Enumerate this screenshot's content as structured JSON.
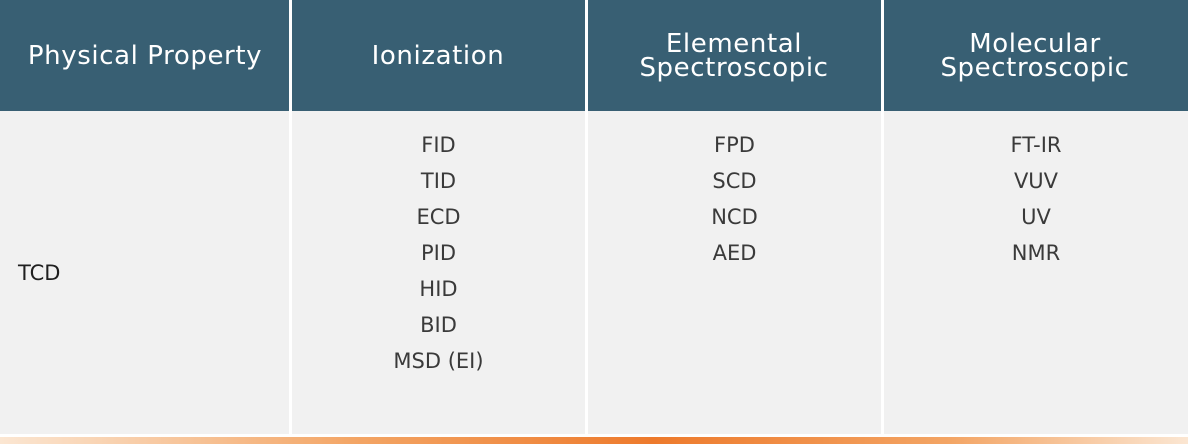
{
  "table": {
    "headers": [
      {
        "lines": [
          "Physical Property"
        ]
      },
      {
        "lines": [
          "Ionization"
        ]
      },
      {
        "lines": [
          "Elemental",
          "Spectroscopic"
        ]
      },
      {
        "lines": [
          "Molecular",
          "Spectroscopic"
        ]
      }
    ],
    "physical_property": [
      "TCD"
    ],
    "ionization": [
      "FID",
      "TID",
      "ECD",
      "PID",
      "HID",
      "BID",
      "MSD (EI)"
    ],
    "elemental_spectroscopic": [
      "FPD",
      "SCD",
      "NCD",
      "AED"
    ],
    "molecular_spectroscopic": [
      "FT-IR",
      "VUV",
      "UV",
      "NMR"
    ]
  },
  "colors": {
    "header_bg": "#385f73",
    "body_bg": "#f1f1f1",
    "accent": "#ed7a2c"
  }
}
